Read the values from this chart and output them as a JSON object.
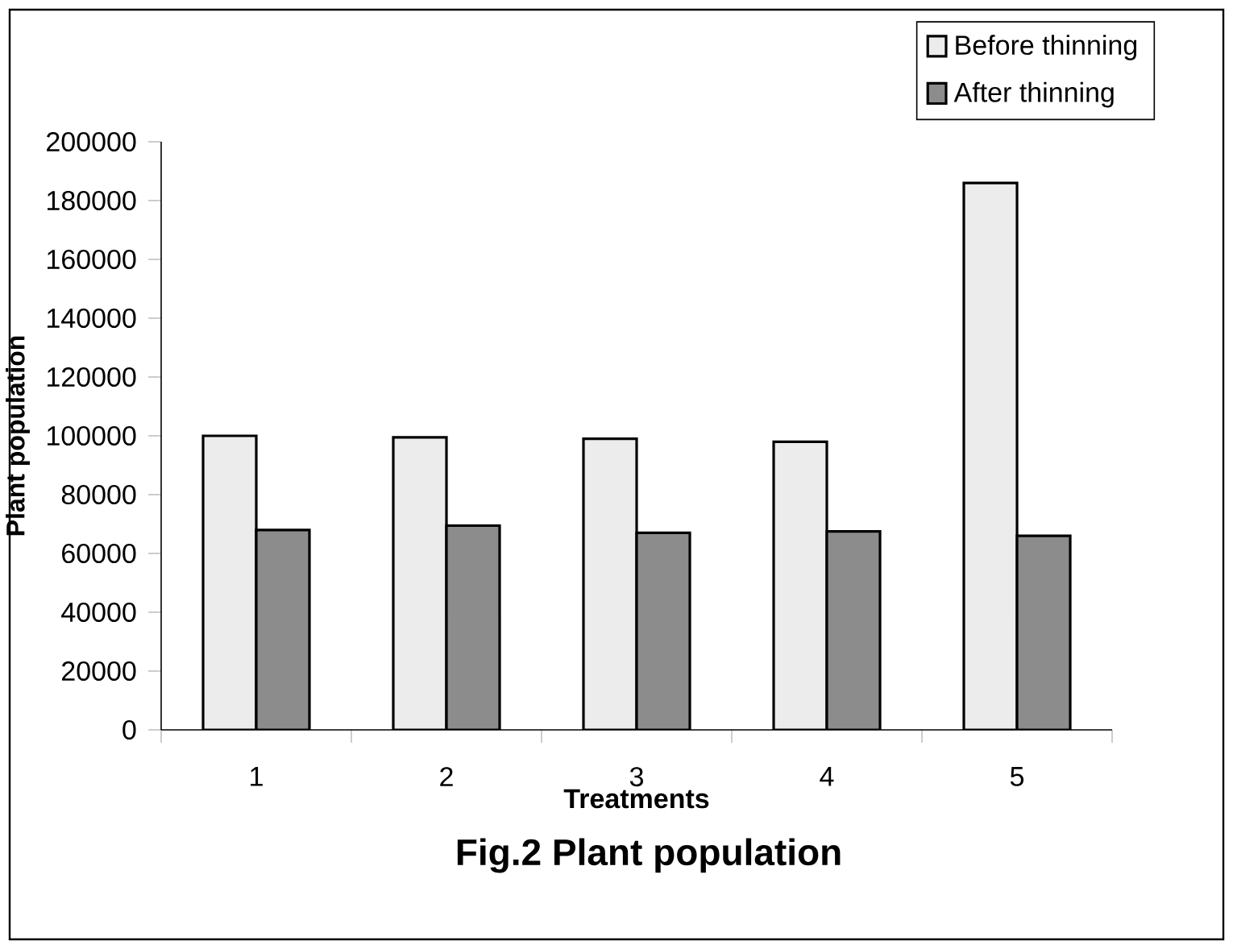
{
  "chart_data": {
    "type": "bar",
    "title": "Fig.2  Plant population",
    "xlabel": "Treatments",
    "ylabel": "Plant population",
    "categories": [
      "1",
      "2",
      "3",
      "4",
      "5"
    ],
    "series": [
      {
        "name": "Before thinning",
        "color": "#ececec",
        "values": [
          100000,
          99500,
          99000,
          98000,
          186000
        ]
      },
      {
        "name": "After thinning",
        "color": "#8c8c8c",
        "values": [
          68000,
          69500,
          67000,
          67500,
          66000
        ]
      }
    ],
    "ylim": [
      0,
      200000
    ],
    "yticks": [
      0,
      20000,
      40000,
      60000,
      80000,
      100000,
      120000,
      140000,
      160000,
      180000,
      200000
    ],
    "grid": false,
    "legend": "top right"
  }
}
